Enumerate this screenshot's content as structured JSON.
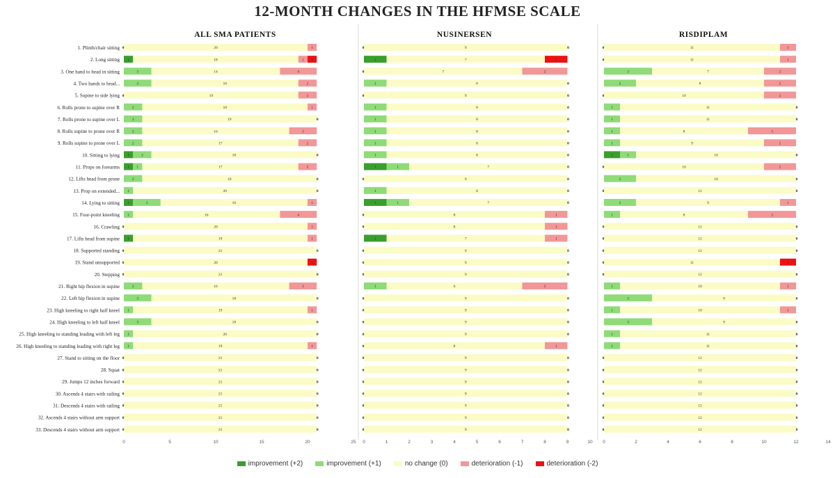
{
  "title": "12-MONTH CHANGES IN THE HFMSE SCALE",
  "colors": {
    "imp2": "#3a9e2c",
    "imp1": "#8fdb78",
    "nochange": "#fbfbc6",
    "det1": "#f29797",
    "det2": "#ee1111"
  },
  "legend": [
    {
      "key": "imp2",
      "label": "improvement (+2)"
    },
    {
      "key": "imp1",
      "label": "improvement (+1)"
    },
    {
      "key": "nochange",
      "label": "no change (0)"
    },
    {
      "key": "det1",
      "label": "deterioration (-1)"
    },
    {
      "key": "det2",
      "label": "deterioration (-2)"
    }
  ],
  "items": [
    "1. Plinth/chair sitting",
    "2. Long sitting",
    "3. One hand to head in sitting",
    "4. Two hands to head...",
    "5. Supine to side lying",
    "6. Rolls prone to supine over R",
    "7. Rolls prone to supine over L",
    "8. Rolls supine to prone over R",
    "9. Rolls supine to prone over L",
    "10. Sitting to lying",
    "11. Props on forearms",
    "12. Lifts head from prone",
    "13. Prop on extended...",
    "14. Lying to sitting",
    "15. Four-point kneeling",
    "16. Crawling",
    "17. Lifts head from supine",
    "18. Supported standing",
    "19. Stand unsupported",
    "20. Stepping",
    "21. Right hip flexion in supine",
    "22. Left hip flexion in supine",
    "23. High kneeling to right half kneel",
    "24. High kneeling to left half kneel",
    "25. High kneeling to standing leading with left leg",
    "26. High kneeling to standing leading with right leg",
    "27. Stand to sitting on the floor",
    "28. Squat",
    "29. Jumps 12 inches forward",
    "30. Ascends 4 stairs with railing",
    "31. Descends 4 stairs with railing",
    "32. Ascends 4 stairs without arm support",
    "33. Descends 4 stairs without arm support"
  ],
  "chart_data": [
    {
      "type": "bar",
      "orientation": "horizontal-stacked",
      "title": "ALL SMA  PATIENTS",
      "xlim": [
        0,
        25
      ],
      "ticks": [
        0,
        5,
        10,
        15,
        20,
        25
      ],
      "series": [
        "imp2",
        "imp1",
        "nochange",
        "det1",
        "det2"
      ],
      "values": [
        [
          0,
          0,
          20,
          1,
          0
        ],
        [
          1,
          0,
          18,
          1,
          1
        ],
        [
          0,
          3,
          14,
          4,
          0
        ],
        [
          0,
          3,
          16,
          2,
          0
        ],
        [
          0,
          0,
          19,
          2,
          0
        ],
        [
          0,
          2,
          18,
          1,
          0
        ],
        [
          0,
          2,
          19,
          0,
          0
        ],
        [
          0,
          2,
          16,
          3,
          0
        ],
        [
          0,
          2,
          17,
          2,
          0
        ],
        [
          1,
          2,
          18,
          0,
          0
        ],
        [
          1,
          1,
          17,
          2,
          0
        ],
        [
          0,
          2,
          19,
          0,
          0
        ],
        [
          0,
          1,
          20,
          0,
          0
        ],
        [
          1,
          3,
          16,
          1,
          0
        ],
        [
          0,
          1,
          16,
          4,
          0
        ],
        [
          0,
          0,
          20,
          1,
          0
        ],
        [
          1,
          0,
          19,
          1,
          0
        ],
        [
          0,
          0,
          21,
          0,
          0
        ],
        [
          0,
          0,
          20,
          0,
          1
        ],
        [
          0,
          0,
          21,
          0,
          0
        ],
        [
          0,
          2,
          16,
          3,
          0
        ],
        [
          0,
          3,
          18,
          0,
          0
        ],
        [
          0,
          1,
          19,
          1,
          0
        ],
        [
          0,
          3,
          18,
          0,
          0
        ],
        [
          0,
          1,
          20,
          0,
          0
        ],
        [
          0,
          1,
          19,
          1,
          0
        ],
        [
          0,
          0,
          21,
          0,
          0
        ],
        [
          0,
          0,
          21,
          0,
          0
        ],
        [
          0,
          0,
          21,
          0,
          0
        ],
        [
          0,
          0,
          21,
          0,
          0
        ],
        [
          0,
          0,
          21,
          0,
          0
        ],
        [
          0,
          0,
          21,
          0,
          0
        ],
        [
          0,
          0,
          21,
          0,
          0
        ]
      ]
    },
    {
      "type": "bar",
      "orientation": "horizontal-stacked",
      "title": "NUSINERSEN",
      "xlim": [
        0,
        10
      ],
      "ticks": [
        0,
        1,
        2,
        3,
        4,
        5,
        6,
        7,
        8,
        9,
        10
      ],
      "series": [
        "imp2",
        "imp1",
        "nochange",
        "det1",
        "det2"
      ],
      "values": [
        [
          0,
          0,
          9,
          0,
          0
        ],
        [
          1,
          0,
          7,
          0,
          1
        ],
        [
          0,
          0,
          7,
          2,
          0
        ],
        [
          0,
          1,
          8,
          0,
          0
        ],
        [
          0,
          0,
          9,
          0,
          0
        ],
        [
          0,
          1,
          8,
          0,
          0
        ],
        [
          0,
          1,
          8,
          0,
          0
        ],
        [
          0,
          1,
          8,
          0,
          0
        ],
        [
          0,
          1,
          8,
          0,
          0
        ],
        [
          0,
          1,
          8,
          0,
          0
        ],
        [
          1,
          1,
          7,
          0,
          0
        ],
        [
          0,
          0,
          9,
          0,
          0
        ],
        [
          0,
          1,
          8,
          0,
          0
        ],
        [
          1,
          1,
          7,
          0,
          0
        ],
        [
          0,
          0,
          8,
          1,
          0
        ],
        [
          0,
          0,
          8,
          1,
          0
        ],
        [
          1,
          0,
          7,
          1,
          0
        ],
        [
          0,
          0,
          9,
          0,
          0
        ],
        [
          0,
          0,
          9,
          0,
          0
        ],
        [
          0,
          0,
          9,
          0,
          0
        ],
        [
          0,
          1,
          6,
          2,
          0
        ],
        [
          0,
          0,
          9,
          0,
          0
        ],
        [
          0,
          0,
          9,
          0,
          0
        ],
        [
          0,
          0,
          9,
          0,
          0
        ],
        [
          0,
          0,
          9,
          0,
          0
        ],
        [
          0,
          0,
          8,
          1,
          0
        ],
        [
          0,
          0,
          9,
          0,
          0
        ],
        [
          0,
          0,
          9,
          0,
          0
        ],
        [
          0,
          0,
          9,
          0,
          0
        ],
        [
          0,
          0,
          9,
          0,
          0
        ],
        [
          0,
          0,
          9,
          0,
          0
        ],
        [
          0,
          0,
          9,
          0,
          0
        ],
        [
          0,
          0,
          9,
          0,
          0
        ]
      ]
    },
    {
      "type": "bar",
      "orientation": "horizontal-stacked",
      "title": "RISDIPLAM",
      "xlim": [
        0,
        14
      ],
      "ticks": [
        0,
        2,
        4,
        6,
        8,
        10,
        12,
        14
      ],
      "series": [
        "imp2",
        "imp1",
        "nochange",
        "det1",
        "det2"
      ],
      "values": [
        [
          0,
          0,
          11,
          1,
          0
        ],
        [
          0,
          0,
          11,
          1,
          0
        ],
        [
          0,
          3,
          7,
          2,
          0
        ],
        [
          0,
          2,
          8,
          2,
          0
        ],
        [
          0,
          0,
          10,
          2,
          0
        ],
        [
          0,
          1,
          11,
          0,
          0
        ],
        [
          0,
          1,
          11,
          0,
          0
        ],
        [
          0,
          1,
          8,
          3,
          0
        ],
        [
          0,
          1,
          9,
          2,
          0
        ],
        [
          1,
          1,
          10,
          0,
          0
        ],
        [
          0,
          0,
          10,
          2,
          0
        ],
        [
          0,
          2,
          10,
          0,
          0
        ],
        [
          0,
          0,
          12,
          0,
          0
        ],
        [
          0,
          2,
          9,
          1,
          0
        ],
        [
          0,
          1,
          8,
          3,
          0
        ],
        [
          0,
          0,
          12,
          0,
          0
        ],
        [
          0,
          0,
          12,
          0,
          0
        ],
        [
          0,
          0,
          12,
          0,
          0
        ],
        [
          0,
          0,
          11,
          0,
          1
        ],
        [
          0,
          0,
          12,
          0,
          0
        ],
        [
          0,
          1,
          10,
          1,
          0
        ],
        [
          0,
          3,
          9,
          0,
          0
        ],
        [
          0,
          1,
          10,
          1,
          0
        ],
        [
          0,
          3,
          9,
          0,
          0
        ],
        [
          0,
          1,
          11,
          0,
          0
        ],
        [
          0,
          1,
          11,
          0,
          0
        ],
        [
          0,
          0,
          12,
          0,
          0
        ],
        [
          0,
          0,
          12,
          0,
          0
        ],
        [
          0,
          0,
          12,
          0,
          0
        ],
        [
          0,
          0,
          12,
          0,
          0
        ],
        [
          0,
          0,
          12,
          0,
          0
        ],
        [
          0,
          0,
          12,
          0,
          0
        ],
        [
          0,
          0,
          12,
          0,
          0
        ]
      ]
    }
  ]
}
